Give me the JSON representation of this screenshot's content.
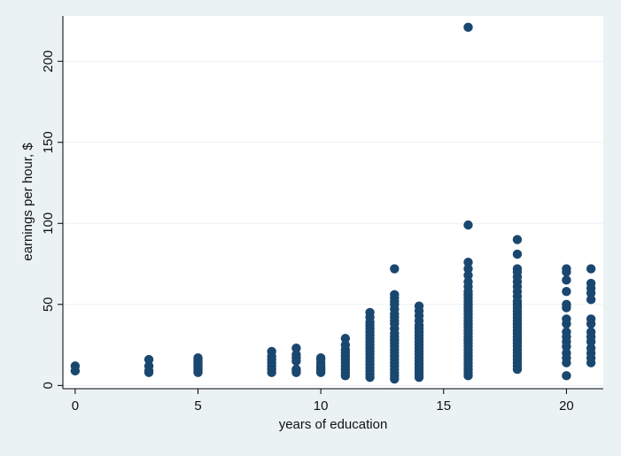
{
  "chart_data": {
    "type": "scatter",
    "title": "",
    "xlabel": "years of education",
    "ylabel": "earnings per hour, $",
    "xlim": [
      -0.5,
      21.5
    ],
    "ylim": [
      -2,
      228
    ],
    "xticks": [
      0,
      5,
      10,
      15,
      20
    ],
    "yticks": [
      0,
      50,
      100,
      150,
      200
    ],
    "grid": true,
    "legend": "none",
    "marker_color": "#1a476f",
    "background_color": "#eaf2f3",
    "plot_background": "#ffffff",
    "grid_color": "#eaf2f3",
    "series": [
      {
        "points": [
          [
            0,
            9
          ],
          [
            0,
            12
          ],
          [
            3,
            8
          ],
          [
            3,
            9
          ],
          [
            3,
            12
          ],
          [
            3,
            16
          ],
          [
            5,
            8
          ],
          [
            5,
            9
          ],
          [
            5,
            10
          ],
          [
            5,
            11
          ],
          [
            5,
            12
          ],
          [
            5,
            13
          ],
          [
            5,
            14
          ],
          [
            5,
            15
          ],
          [
            5,
            16
          ],
          [
            5,
            17
          ],
          [
            8,
            8
          ],
          [
            8,
            10
          ],
          [
            8,
            12
          ],
          [
            8,
            14
          ],
          [
            8,
            16
          ],
          [
            8,
            18
          ],
          [
            8,
            21
          ],
          [
            9,
            8
          ],
          [
            9,
            9
          ],
          [
            9,
            10
          ],
          [
            9,
            15
          ],
          [
            9,
            17
          ],
          [
            9,
            19
          ],
          [
            9,
            23
          ],
          [
            10,
            8
          ],
          [
            10,
            9
          ],
          [
            10,
            10
          ],
          [
            10,
            11
          ],
          [
            10,
            12
          ],
          [
            10,
            14
          ],
          [
            10,
            16
          ],
          [
            10,
            17
          ],
          [
            11,
            6
          ],
          [
            11,
            8
          ],
          [
            11,
            10
          ],
          [
            11,
            12
          ],
          [
            11,
            14
          ],
          [
            11,
            16
          ],
          [
            11,
            18
          ],
          [
            11,
            20
          ],
          [
            11,
            22
          ],
          [
            11,
            25
          ],
          [
            11,
            29
          ],
          [
            12,
            5
          ],
          [
            12,
            7
          ],
          [
            12,
            9
          ],
          [
            12,
            11
          ],
          [
            12,
            13
          ],
          [
            12,
            15
          ],
          [
            12,
            17
          ],
          [
            12,
            19
          ],
          [
            12,
            21
          ],
          [
            12,
            23
          ],
          [
            12,
            25
          ],
          [
            12,
            27
          ],
          [
            12,
            29
          ],
          [
            12,
            31
          ],
          [
            12,
            33
          ],
          [
            12,
            35
          ],
          [
            12,
            37
          ],
          [
            12,
            39
          ],
          [
            12,
            42
          ],
          [
            12,
            45
          ],
          [
            13,
            4
          ],
          [
            13,
            6
          ],
          [
            13,
            8
          ],
          [
            13,
            10
          ],
          [
            13,
            12
          ],
          [
            13,
            14
          ],
          [
            13,
            16
          ],
          [
            13,
            18
          ],
          [
            13,
            20
          ],
          [
            13,
            22
          ],
          [
            13,
            24
          ],
          [
            13,
            26
          ],
          [
            13,
            28
          ],
          [
            13,
            30
          ],
          [
            13,
            32
          ],
          [
            13,
            35
          ],
          [
            13,
            38
          ],
          [
            13,
            40
          ],
          [
            13,
            42
          ],
          [
            13,
            44
          ],
          [
            13,
            47
          ],
          [
            13,
            50
          ],
          [
            13,
            52
          ],
          [
            13,
            54
          ],
          [
            13,
            56
          ],
          [
            13,
            72
          ],
          [
            14,
            5
          ],
          [
            14,
            7
          ],
          [
            14,
            9
          ],
          [
            14,
            11
          ],
          [
            14,
            13
          ],
          [
            14,
            15
          ],
          [
            14,
            17
          ],
          [
            14,
            19
          ],
          [
            14,
            21
          ],
          [
            14,
            23
          ],
          [
            14,
            25
          ],
          [
            14,
            27
          ],
          [
            14,
            29
          ],
          [
            14,
            31
          ],
          [
            14,
            33
          ],
          [
            14,
            35
          ],
          [
            14,
            37
          ],
          [
            14,
            40
          ],
          [
            14,
            43
          ],
          [
            14,
            46
          ],
          [
            14,
            49
          ],
          [
            16,
            6
          ],
          [
            16,
            8
          ],
          [
            16,
            10
          ],
          [
            16,
            12
          ],
          [
            16,
            14
          ],
          [
            16,
            16
          ],
          [
            16,
            18
          ],
          [
            16,
            20
          ],
          [
            16,
            22
          ],
          [
            16,
            24
          ],
          [
            16,
            26
          ],
          [
            16,
            28
          ],
          [
            16,
            30
          ],
          [
            16,
            32
          ],
          [
            16,
            34
          ],
          [
            16,
            36
          ],
          [
            16,
            38
          ],
          [
            16,
            40
          ],
          [
            16,
            42
          ],
          [
            16,
            44
          ],
          [
            16,
            46
          ],
          [
            16,
            48
          ],
          [
            16,
            50
          ],
          [
            16,
            52
          ],
          [
            16,
            54
          ],
          [
            16,
            56
          ],
          [
            16,
            58
          ],
          [
            16,
            61
          ],
          [
            16,
            64
          ],
          [
            16,
            68
          ],
          [
            16,
            72
          ],
          [
            16,
            76
          ],
          [
            16,
            99
          ],
          [
            16,
            221
          ],
          [
            18,
            10
          ],
          [
            18,
            12
          ],
          [
            18,
            14
          ],
          [
            18,
            16
          ],
          [
            18,
            18
          ],
          [
            18,
            20
          ],
          [
            18,
            22
          ],
          [
            18,
            24
          ],
          [
            18,
            26
          ],
          [
            18,
            28
          ],
          [
            18,
            30
          ],
          [
            18,
            32
          ],
          [
            18,
            34
          ],
          [
            18,
            36
          ],
          [
            18,
            38
          ],
          [
            18,
            40
          ],
          [
            18,
            42
          ],
          [
            18,
            44
          ],
          [
            18,
            46
          ],
          [
            18,
            48
          ],
          [
            18,
            50
          ],
          [
            18,
            52
          ],
          [
            18,
            55
          ],
          [
            18,
            58
          ],
          [
            18,
            61
          ],
          [
            18,
            64
          ],
          [
            18,
            67
          ],
          [
            18,
            70
          ],
          [
            18,
            72
          ],
          [
            18,
            81
          ],
          [
            18,
            90
          ],
          [
            20,
            6
          ],
          [
            20,
            14
          ],
          [
            20,
            17
          ],
          [
            20,
            20
          ],
          [
            20,
            24
          ],
          [
            20,
            27
          ],
          [
            20,
            30
          ],
          [
            20,
            33
          ],
          [
            20,
            38
          ],
          [
            20,
            41
          ],
          [
            20,
            48
          ],
          [
            20,
            50
          ],
          [
            20,
            58
          ],
          [
            20,
            65
          ],
          [
            20,
            70
          ],
          [
            20,
            72
          ],
          [
            21,
            14
          ],
          [
            21,
            17
          ],
          [
            21,
            20
          ],
          [
            21,
            23
          ],
          [
            21,
            27
          ],
          [
            21,
            30
          ],
          [
            21,
            33
          ],
          [
            21,
            38
          ],
          [
            21,
            41
          ],
          [
            21,
            53
          ],
          [
            21,
            57
          ],
          [
            21,
            60
          ],
          [
            21,
            63
          ],
          [
            21,
            72
          ]
        ]
      }
    ]
  }
}
